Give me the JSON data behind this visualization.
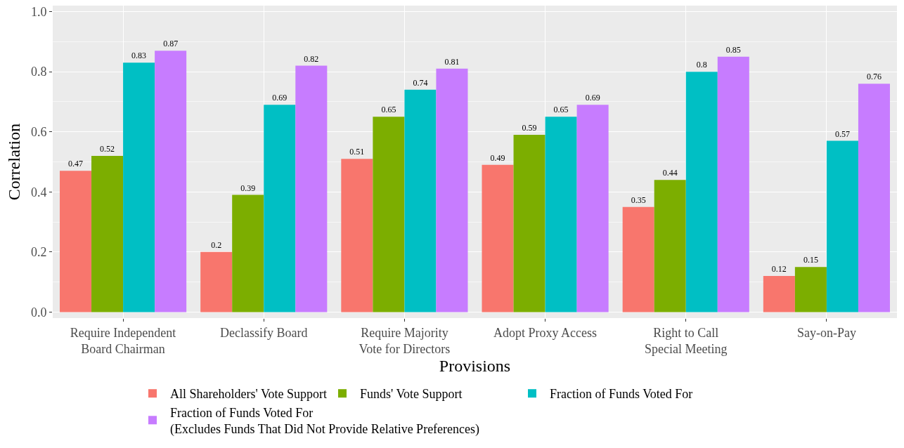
{
  "chart_data": {
    "type": "bar",
    "xlabel": "Provisions",
    "ylabel": "Correlation",
    "categories": [
      "Require Independent\nBoard Chairman",
      "Declassify Board",
      "Require Majority\nVote for Directors",
      "Adopt Proxy Access",
      "Right to Call\nSpecial Meeting",
      "Say-on-Pay"
    ],
    "series": [
      {
        "name": "All Shareholders' Vote Support",
        "color": "#f8766d",
        "values": [
          0.47,
          0.2,
          0.51,
          0.49,
          0.35,
          0.12
        ]
      },
      {
        "name": "Funds' Vote Support",
        "color": "#7cae00",
        "values": [
          0.52,
          0.39,
          0.65,
          0.59,
          0.44,
          0.15
        ]
      },
      {
        "name": "Fraction of Funds Voted For",
        "color": "#00bfc4",
        "values": [
          0.83,
          0.69,
          0.74,
          0.65,
          0.8,
          0.57
        ]
      },
      {
        "name": "Fraction of Funds Voted For\n(Excludes Funds That Did Not Provide Relative Preferences)",
        "color": "#c77cff",
        "values": [
          0.87,
          0.82,
          0.81,
          0.69,
          0.85,
          0.76
        ]
      }
    ],
    "ylim": [
      -0.02,
      1.02
    ],
    "yticks": [
      {
        "value": 0,
        "label": "0.0"
      },
      0.2,
      0.4,
      0.6,
      0.8,
      {
        "value": 1,
        "label": "1.0"
      }
    ],
    "grid": true,
    "legend": "bottom",
    "data_labels": true
  }
}
